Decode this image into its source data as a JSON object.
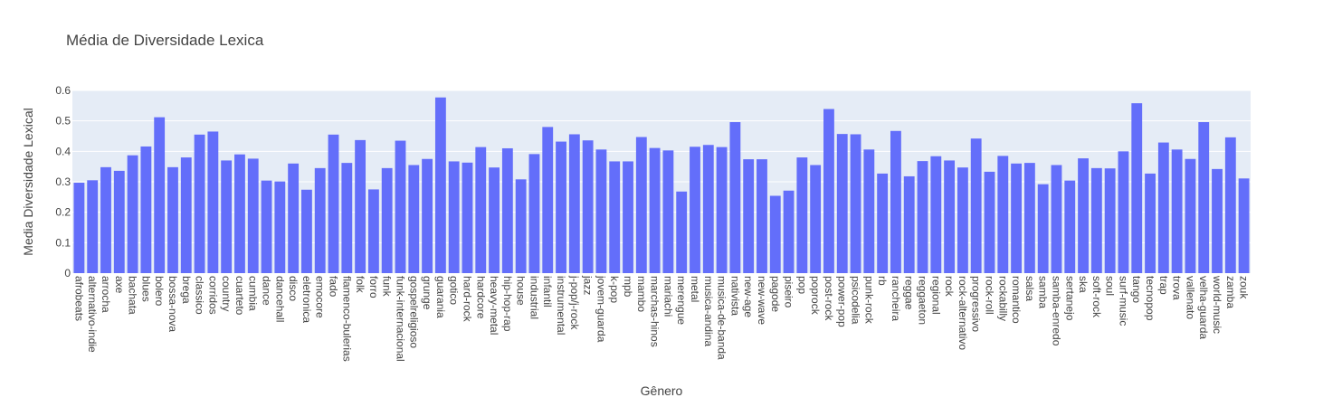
{
  "chart_data": {
    "type": "bar",
    "title": "Média de Diversidade Lexica",
    "xlabel": "Gênero",
    "ylabel": "Media Diversidade Lexical",
    "ylim": [
      0,
      0.6
    ],
    "yticks": [
      0,
      0.1,
      0.2,
      0.3,
      0.4,
      0.5,
      0.6
    ],
    "ytick_labels": [
      "0",
      "0.1",
      "0.2",
      "0.3",
      "0.4",
      "0.5",
      "0.6"
    ],
    "grid": true,
    "legend": "none",
    "colors": {
      "bar": "#636efa",
      "plot_bg": "#e5ecf6",
      "grid": "#ffffff",
      "text": "#444444"
    },
    "categories": [
      "afrobeats",
      "alternativo-indie",
      "arrocha",
      "axe",
      "bachata",
      "blues",
      "bolero",
      "bossa-nova",
      "brega",
      "classico",
      "corridos",
      "country",
      "cuarteto",
      "cumbia",
      "dance",
      "dancehall",
      "disco",
      "eletronica",
      "emocore",
      "fado",
      "flamenco-bulerias",
      "folk",
      "forro",
      "funk",
      "funk-internacional",
      "gospelreligioso",
      "grunge",
      "guarania",
      "gotico",
      "hard-rock",
      "hardcore",
      "heavy-metal",
      "hip-hop-rap",
      "house",
      "industrial",
      "infantil",
      "instrumental",
      "j-pop/j-rock",
      "jazz",
      "jovem-guarda",
      "k-pop",
      "mpb",
      "mambo",
      "marchas-hinos",
      "mariachi",
      "merengue",
      "metal",
      "musica-andina",
      "musica-de-banda",
      "nativista",
      "new-age",
      "new-wave",
      "pagode",
      "piseiro",
      "pop",
      "poprock",
      "post-rock",
      "power-pop",
      "psicodelia",
      "punk-rock",
      "rb",
      "rancheira",
      "reggae",
      "reggaeton",
      "regional",
      "rock",
      "rock-alternativo",
      "progressivo",
      "rock-roll",
      "rockabilly",
      "romantico",
      "salsa",
      "samba",
      "samba-enredo",
      "sertanejo",
      "ska",
      "soft-rock",
      "soul",
      "surf-music",
      "tango",
      "tecnopop",
      "trap",
      "trova",
      "vallenato",
      "velha-guarda",
      "world-music",
      "zamba",
      "zouk"
    ],
    "values": [
      0.297,
      0.305,
      0.348,
      0.336,
      0.387,
      0.416,
      0.512,
      0.348,
      0.38,
      0.455,
      0.465,
      0.37,
      0.39,
      0.376,
      0.304,
      0.301,
      0.36,
      0.274,
      0.345,
      0.455,
      0.362,
      0.437,
      0.275,
      0.345,
      0.435,
      0.355,
      0.375,
      0.577,
      0.367,
      0.363,
      0.414,
      0.347,
      0.41,
      0.308,
      0.391,
      0.48,
      0.432,
      0.456,
      0.436,
      0.406,
      0.367,
      0.367,
      0.447,
      0.411,
      0.403,
      0.268,
      0.415,
      0.421,
      0.414,
      0.496,
      0.374,
      0.374,
      0.254,
      0.271,
      0.38,
      0.355,
      0.539,
      0.457,
      0.456,
      0.406,
      0.327,
      0.467,
      0.318,
      0.368,
      0.384,
      0.37,
      0.347,
      0.442,
      0.333,
      0.385,
      0.36,
      0.362,
      0.292,
      0.355,
      0.304,
      0.377,
      0.345,
      0.344,
      0.4,
      0.558,
      0.327,
      0.429,
      0.406,
      0.375,
      0.496,
      0.342,
      0.446,
      0.311
    ]
  }
}
